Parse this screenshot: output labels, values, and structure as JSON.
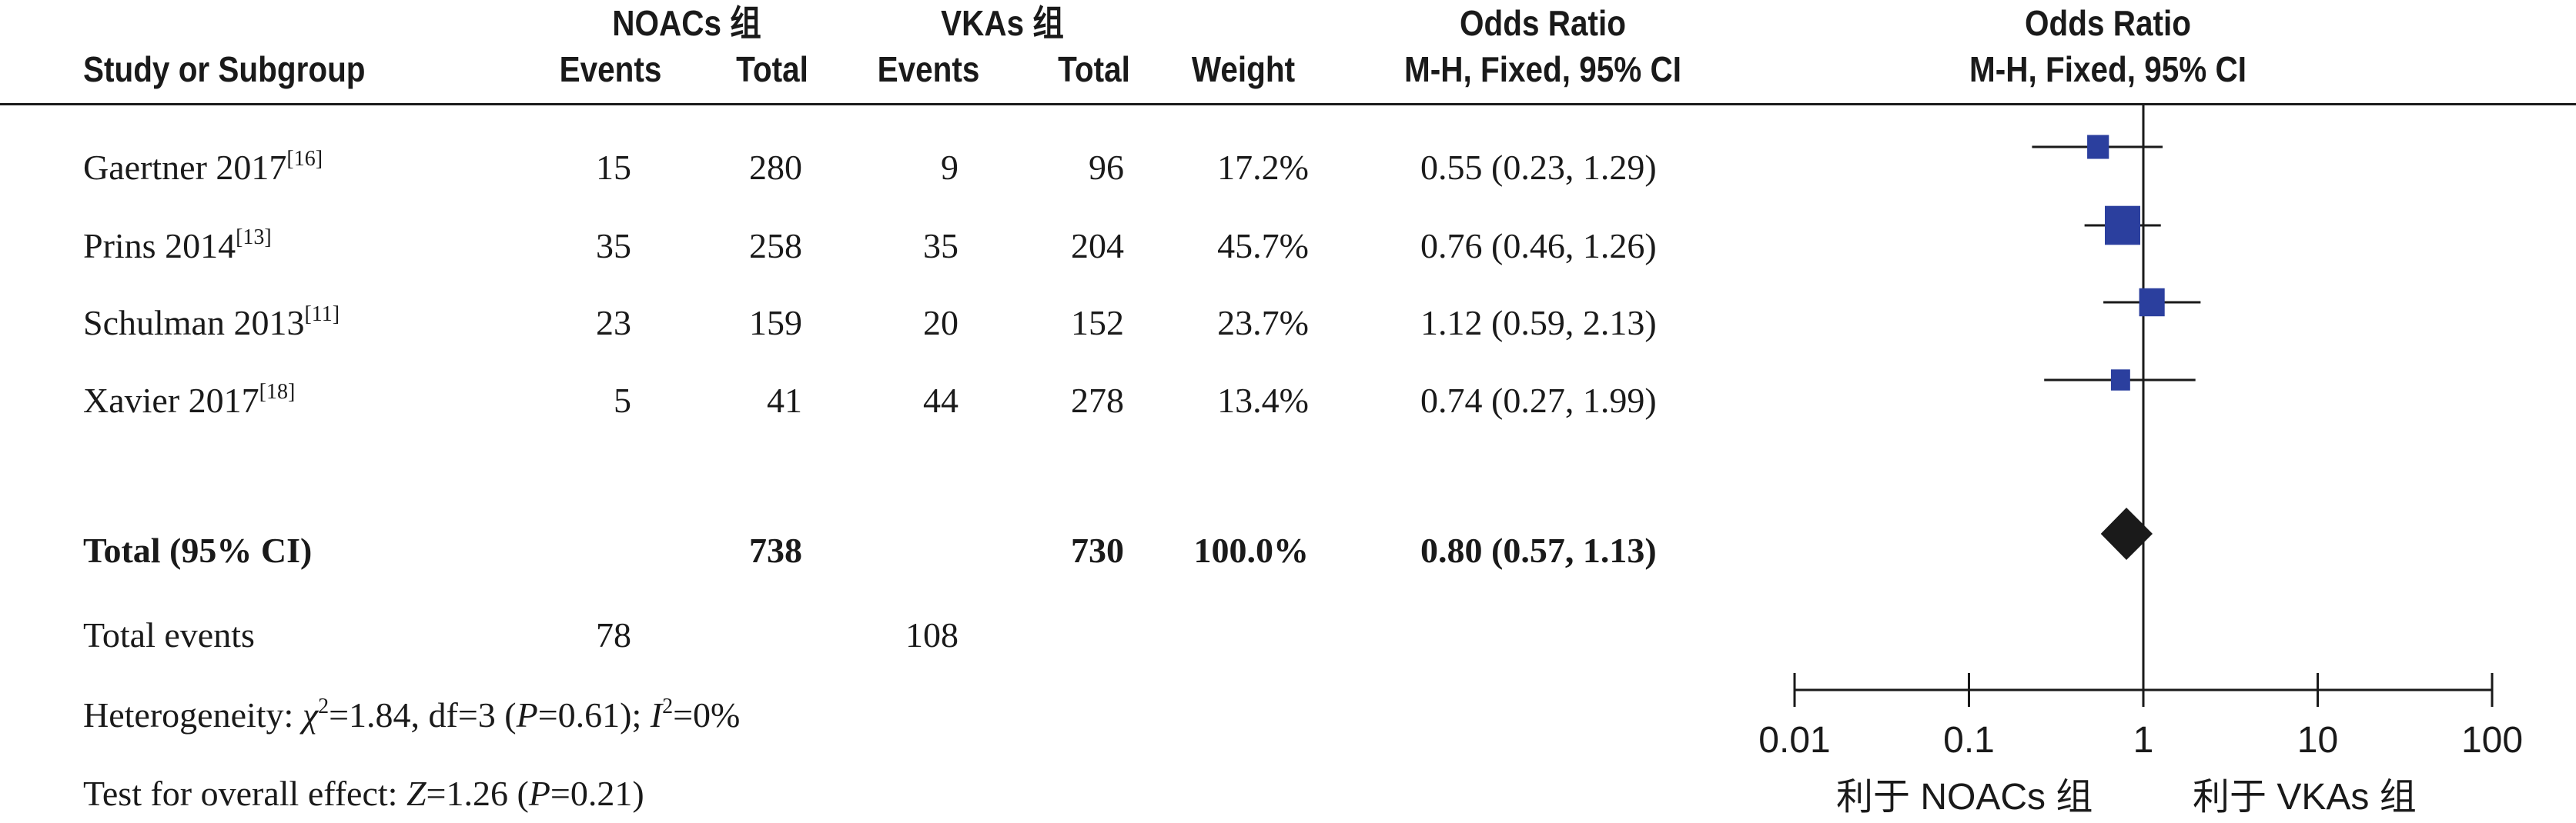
{
  "headers": {
    "study": "Study or Subgroup",
    "group1": "NOACs 组",
    "group2": "VKAs 组",
    "events": "Events",
    "total": "Total",
    "weight": "Weight",
    "or_title": "Odds Ratio",
    "or_method": "M-H, Fixed, 95% CI",
    "plot_title": "Odds Ratio",
    "plot_method": "M-H, Fixed, 95% CI"
  },
  "rows": [
    {
      "study": "Gaertner 2017",
      "ref": "[16]",
      "e1": "15",
      "t1": "280",
      "e2": "9",
      "t2": "96",
      "weight": "17.2%",
      "or": "0.55 (0.23, 1.29)"
    },
    {
      "study": "Prins 2014",
      "ref": "[13]",
      "e1": "35",
      "t1": "258",
      "e2": "35",
      "t2": "204",
      "weight": "45.7%",
      "or": "0.76 (0.46, 1.26)"
    },
    {
      "study": "Schulman 2013",
      "ref": "[11]",
      "e1": "23",
      "t1": "159",
      "e2": "20",
      "t2": "152",
      "weight": "23.7%",
      "or": "1.12 (0.59, 2.13)"
    },
    {
      "study": "Xavier 2017",
      "ref": "[18]",
      "e1": "5",
      "t1": "41",
      "e2": "44",
      "t2": "278",
      "weight": "13.4%",
      "or": "0.74 (0.27, 1.99)"
    }
  ],
  "total_row": {
    "label": "Total (95% CI)",
    "t1": "738",
    "t2": "730",
    "weight": "100.0%",
    "or": "0.80 (0.57, 1.13)"
  },
  "events_row": {
    "label": "Total events",
    "e1": "78",
    "e2": "108"
  },
  "heterogeneity": {
    "prefix": "Heterogeneity: ",
    "chi": "χ",
    "chi_sup": "2",
    "mid": "=1.84, df=3 (",
    "p": "P",
    "p_val": "=0.61); ",
    "i": "I",
    "i_sup": "2",
    "i_val": "=0%"
  },
  "overall": {
    "prefix": "Test for overall effect: ",
    "z": "Z",
    "z_val": "=1.26 (",
    "p": "P",
    "p_val": "=0.21)"
  },
  "colors": {
    "square": "#2b3f9e",
    "diamond": "#1a1a1a",
    "line": "#1a1a1a"
  },
  "chart_data": {
    "type": "forest",
    "scale": "log",
    "xlim": [
      0.01,
      100
    ],
    "ticks": [
      0.01,
      0.1,
      1,
      10,
      100
    ],
    "tick_labels": [
      "0.01",
      "0.1",
      "1",
      "10",
      "100"
    ],
    "null_line": 1,
    "favours_left": "利于 NOACs 组",
    "favours_right": "利于 VKAs 组",
    "studies": [
      {
        "name": "Gaertner 2017",
        "or": 0.55,
        "lo": 0.23,
        "hi": 1.29,
        "weight": 17.2
      },
      {
        "name": "Prins 2014",
        "or": 0.76,
        "lo": 0.46,
        "hi": 1.26,
        "weight": 45.7
      },
      {
        "name": "Schulman 2013",
        "or": 1.12,
        "lo": 0.59,
        "hi": 2.13,
        "weight": 23.7
      },
      {
        "name": "Xavier 2017",
        "or": 0.74,
        "lo": 0.27,
        "hi": 1.99,
        "weight": 13.4
      }
    ],
    "pooled": {
      "or": 0.8,
      "lo": 0.57,
      "hi": 1.13
    }
  }
}
